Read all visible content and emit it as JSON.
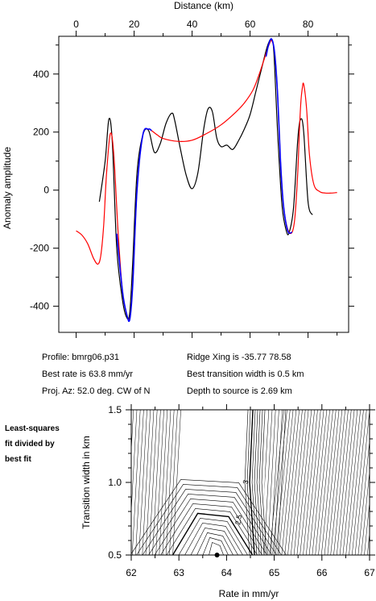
{
  "chart_data": [
    {
      "type": "line",
      "title": "",
      "xlabel": "Distance (km)",
      "ylabel": "Anomaly amplitude",
      "xlim": [
        -6,
        94
      ],
      "ylim": [
        -490,
        530
      ],
      "x_ticks": [
        0,
        20,
        40,
        60,
        80
      ],
      "y_ticks": [
        -400,
        -200,
        0,
        200,
        400
      ],
      "grid": false,
      "series": [
        {
          "color": "#000000",
          "x": [
            8,
            10,
            11.3,
            12.5,
            14,
            16,
            17.5,
            18.5,
            19.5,
            21,
            23,
            25,
            27,
            29,
            31,
            33,
            34,
            36,
            38,
            40,
            42,
            44,
            45.5,
            47,
            48.5,
            50,
            52,
            54,
            56,
            58,
            60,
            62,
            64,
            65.5,
            66.5,
            67.3,
            68,
            68.5,
            69.5,
            71,
            72.5,
            73.5,
            75,
            76.5,
            77.5,
            78.5,
            80,
            81.5
          ],
          "y": [
            -40,
            100,
            245,
            160,
            -200,
            -380,
            -440,
            -420,
            -250,
            60,
            190,
            205,
            130,
            160,
            230,
            265,
            240,
            140,
            50,
            5,
            60,
            210,
            280,
            270,
            180,
            150,
            155,
            140,
            170,
            210,
            260,
            340,
            420,
            480,
            510,
            520,
            500,
            420,
            200,
            -50,
            -140,
            -145,
            -60,
            180,
            245,
            200,
            -40,
            -85
          ]
        },
        {
          "color": "#ff0000",
          "x": [
            0,
            2,
            4,
            6,
            7.5,
            8.5,
            9.5,
            10.5,
            11.8,
            13,
            14.5,
            16,
            17.5,
            18.5,
            19.5,
            21,
            23,
            25,
            26,
            28,
            30,
            35,
            40,
            45,
            50,
            55,
            58,
            61,
            63,
            65,
            66.5,
            67.5,
            68.5,
            69.5,
            70.5,
            71.5,
            73,
            74.5,
            75.5,
            76.5,
            77,
            77.5,
            78,
            78.5,
            79.5,
            80.5,
            82,
            84,
            86,
            88,
            90
          ],
          "y": [
            -140,
            -155,
            -185,
            -235,
            -255,
            -225,
            -120,
            60,
            195,
            120,
            -150,
            -350,
            -430,
            -440,
            -330,
            0,
            190,
            210,
            205,
            190,
            178,
            168,
            172,
            195,
            225,
            268,
            300,
            345,
            395,
            455,
            500,
            515,
            470,
            330,
            100,
            -50,
            -135,
            -145,
            -90,
            70,
            200,
            300,
            350,
            365,
            280,
            120,
            20,
            -5,
            -10,
            -10,
            -8
          ]
        },
        {
          "color": "#0000ff",
          "x": [
            14,
            16,
            17.5,
            18.5,
            19.5,
            21,
            23,
            25,
            26,
            65.5,
            66.5,
            67.5,
            68.5,
            69.5,
            70.5,
            71.5,
            73,
            74.5
          ],
          "y": [
            -150,
            -350,
            -430,
            -445,
            -330,
            0,
            190,
            210,
            205,
            460,
            505,
            520,
            470,
            330,
            100,
            -50,
            -140,
            -145
          ]
        }
      ]
    },
    {
      "type": "heatmap",
      "title": "",
      "xlabel": "Rate in mm/yr",
      "ylabel": "Transition width in km",
      "xlim": [
        62,
        67
      ],
      "ylim": [
        0.5,
        1.5
      ],
      "x_ticks": [
        62,
        63,
        64,
        65,
        66,
        67
      ],
      "y_ticks": [
        0.5,
        1.0,
        1.5
      ],
      "contour_labels": [
        "3",
        "2.5"
      ],
      "best_fit_point": {
        "rate": 63.8,
        "width": 0.5
      }
    }
  ],
  "info": {
    "profile": "Profile: bmrg06.p31",
    "best_rate": "Best rate is 63.8 mm/yr",
    "proj_az": "Proj. Az: 52.0 deg. CW of N",
    "ridge_xing": "Ridge Xing is -35.77 78.58",
    "best_width": "Best transition width is 0.5 km",
    "depth": "Depth to source is   2.69 km"
  },
  "side_note": [
    "Least-squares",
    "fit divided by",
    "best fit"
  ]
}
